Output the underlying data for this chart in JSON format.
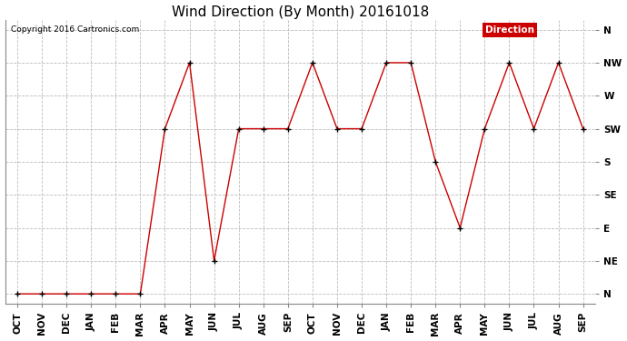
{
  "title": "Wind Direction (By Month) 20161018",
  "copyright": "Copyright 2016 Cartronics.com",
  "legend_label": "Direction",
  "legend_bg": "#cc0000",
  "legend_text_color": "#ffffff",
  "x_labels": [
    "OCT",
    "NOV",
    "DEC",
    "JAN",
    "FEB",
    "MAR",
    "APR",
    "MAY",
    "JUN",
    "JUL",
    "AUG",
    "SEP",
    "OCT",
    "NOV",
    "DEC",
    "JAN",
    "FEB",
    "MAR",
    "APR",
    "MAY",
    "JUN",
    "JUL",
    "AUG",
    "SEP"
  ],
  "y_labels": [
    "N",
    "NE",
    "E",
    "SE",
    "S",
    "SW",
    "W",
    "NW",
    "N"
  ],
  "y_values": [
    0,
    1,
    2,
    3,
    4,
    5,
    6,
    7,
    8
  ],
  "data_values": [
    0,
    0,
    0,
    0,
    0,
    0,
    5,
    7,
    1,
    5,
    5,
    5,
    7,
    5,
    5,
    7,
    7,
    4,
    2,
    5,
    7,
    5,
    7,
    5
  ],
  "line_color": "#cc0000",
  "marker_color": "#000000",
  "grid_color": "#bbbbbb",
  "bg_color": "#ffffff",
  "plot_bg_color": "#ffffff",
  "title_fontsize": 11,
  "tick_fontsize": 7.5
}
